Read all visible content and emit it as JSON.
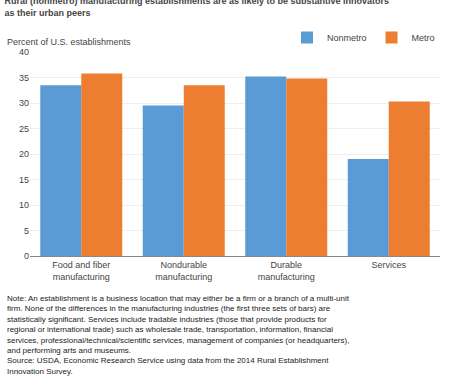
{
  "chart_data": {
    "type": "bar",
    "title": "Rural (nonmetro) manufacturing establishments are as likely to be substantive innovators\nas their urban peers",
    "ylabel": "Percent of U.S. establishments",
    "note": "Note: An establishment is a business location that may either be a firm or a branch of a multi-unit\nfirm. None of the differences in the manufacturing industries (the first three sets of bars) are\nstatistically significant. Services include tradable industries (those that provide products for\nregional or international trade) such as wholesale trade, transportation, information, financial\nservices, professional/technical/scientific services, management of companies (or headquarters),\nand performing arts and museums.\nSource: USDA, Economic Research Service using data from the 2014 Rural Establishment\nInnovation Survey.",
    "categories": [
      "Food and fiber\nmanufacturing",
      "Nondurable\nmanufacturing",
      "Durable\nmanufacturing",
      "Services"
    ],
    "series": [
      {
        "name": "Nonmetro",
        "color": "#5B9BD5",
        "values": [
          33.5,
          29.5,
          35.2,
          19.0
        ]
      },
      {
        "name": "Metro",
        "color": "#ED7D31",
        "values": [
          35.8,
          33.5,
          34.8,
          30.3
        ]
      }
    ],
    "ylim": [
      0,
      40
    ],
    "yticks": [
      0,
      5,
      10,
      15,
      20,
      25,
      30,
      35,
      40
    ],
    "grid": true,
    "legend": "upper right"
  }
}
